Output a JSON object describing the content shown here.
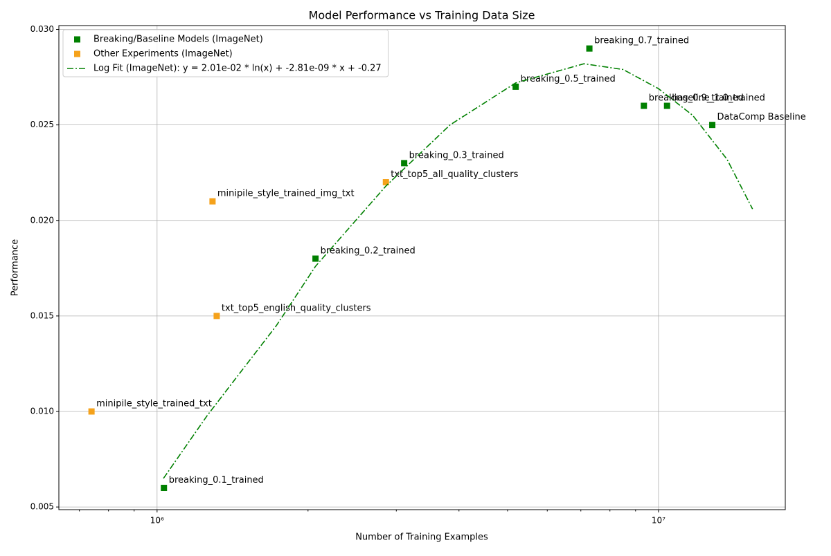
{
  "chart_data": {
    "type": "scatter",
    "title": "Model Performance vs Training Data Size",
    "x_label": "Number of Training Examples",
    "y_label": "Performance",
    "xscale": "log",
    "grid": true,
    "legend_location": "upper left",
    "xlim": [
      637000,
      17900000
    ],
    "ylim": [
      0.00486,
      0.0302
    ],
    "xticks": [
      {
        "value": 1000000,
        "label": "10⁶"
      },
      {
        "value": 10000000,
        "label": "10⁷"
      }
    ],
    "xminorticks": [
      700000,
      800000,
      900000,
      2000000,
      3000000,
      4000000,
      5000000,
      6000000,
      7000000,
      8000000,
      9000000
    ],
    "yticks": [
      0.005,
      {
        "value": 0.01,
        "label": "0.010"
      },
      0.015,
      {
        "value": 0.02,
        "label": "0.020"
      },
      0.025,
      {
        "value": 0.03,
        "label": "0.030"
      }
    ],
    "series": [
      {
        "name": "Breaking/Baseline Models (ImageNet)",
        "type": "scatter",
        "color": "#008000",
        "x": [
          1032000,
          2070000,
          3110000,
          5190000,
          7280000,
          9350000,
          10400000,
          12800000
        ],
        "values": [
          0.006,
          0.018,
          0.023,
          0.027,
          0.029,
          0.026,
          0.026,
          0.025
        ],
        "labels": [
          "breaking_0.1_trained",
          "breaking_0.2_trained",
          "breaking_0.3_trained",
          "breaking_0.5_trained",
          "breaking_0.7_trained",
          "breaking_0.9_trained",
          "baseline_1.0_trained",
          "DataComp Baseline"
        ]
      },
      {
        "name": "Other Experiments (ImageNet)",
        "type": "scatter",
        "color": "#f5a21b",
        "x": [
          740000,
          1290000,
          1315000,
          2860000
        ],
        "values": [
          0.01,
          0.021,
          0.015,
          0.022
        ],
        "labels": [
          "minipile_style_trained_txt",
          "minipile_style_trained_img_txt",
          "txt_top5_english_quality_clusters",
          "txt_top5_all_quality_clusters"
        ]
      },
      {
        "name": "Log Fit (ImageNet): y = 2.01e-02 * ln(x) + -2.81e-09 * x + -0.27",
        "type": "line",
        "line_style": "dashdot",
        "color": "#008000",
        "x": [
          1030000,
          1260000,
          1730000,
          2070000,
          2860000,
          3840000,
          5190000,
          7100000,
          8500000,
          10000000,
          11700000,
          13700000,
          15400000
        ],
        "values": [
          0.0065,
          0.0098,
          0.0145,
          0.0176,
          0.0218,
          0.025,
          0.0272,
          0.0282,
          0.0279,
          0.0269,
          0.0255,
          0.0232,
          0.0206
        ]
      }
    ]
  }
}
